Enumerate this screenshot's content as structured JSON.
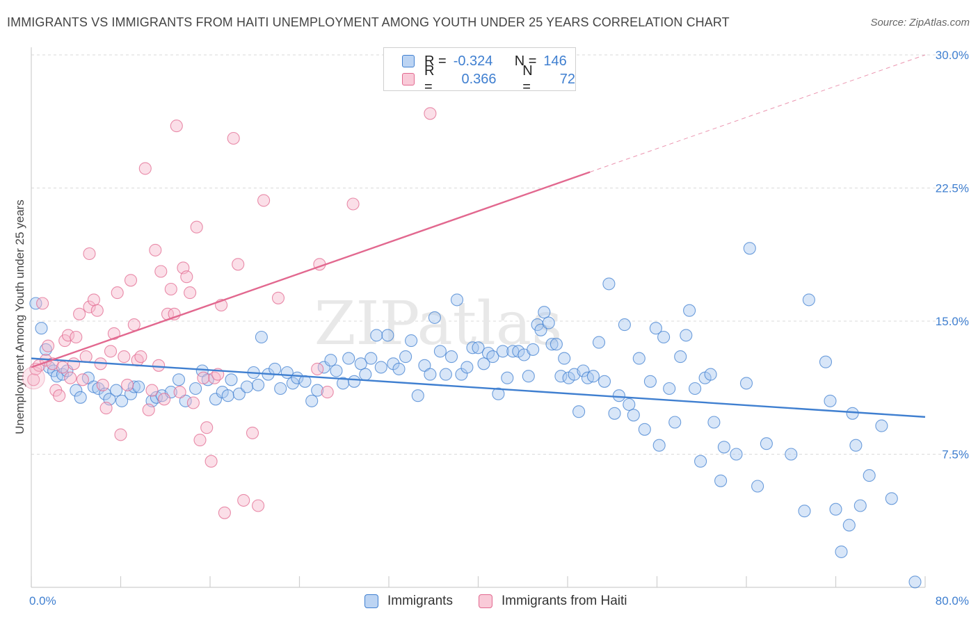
{
  "title": "IMMIGRANTS VS IMMIGRANTS FROM HAITI UNEMPLOYMENT AMONG YOUTH UNDER 25 YEARS CORRELATION CHART",
  "source": "Source: ZipAtlas.com",
  "watermark": "ZIPatlas",
  "colors": {
    "blue": "#3f7fd0",
    "blue_fill": "#a9c8f0",
    "pink": "#e2688f",
    "pink_fill": "#f6b9cc",
    "grid": "#d9d9d9"
  },
  "legend": {
    "rows": [
      {
        "r_label": "R =",
        "r_value": "-0.324",
        "n_label": "N =",
        "n_value": "146"
      },
      {
        "r_label": "R =",
        "r_value": "0.366",
        "n_label": "N =",
        "n_value": "72"
      }
    ]
  },
  "bottom_legend": [
    "Immigrants",
    "Immigrants from Haiti"
  ],
  "chart_data": {
    "type": "scatter",
    "title": "IMMIGRANTS VS IMMIGRANTS FROM HAITI UNEMPLOYMENT AMONG YOUTH UNDER 25 YEARS CORRELATION CHART",
    "xlabel": "",
    "ylabel": "Unemployment Among Youth under 25 years",
    "xlim": [
      0,
      80
    ],
    "ylim": [
      0,
      30
    ],
    "x_tick_labels": [
      "0.0%",
      "80.0%"
    ],
    "y_ticks": [
      7.5,
      15.0,
      22.5,
      30.0
    ],
    "y_tick_labels": [
      "7.5%",
      "15.0%",
      "22.5%",
      "30.0%"
    ],
    "grid": true,
    "series": [
      {
        "name": "Immigrants",
        "color": "#3f7fd0",
        "trend": {
          "x": [
            0,
            80
          ],
          "y": [
            12.9,
            9.6
          ],
          "dashed_from": null
        },
        "points": [
          [
            0.4,
            16.0
          ],
          [
            0.9,
            14.6
          ],
          [
            1.3,
            13.4
          ],
          [
            1.6,
            12.4
          ],
          [
            2.0,
            12.2
          ],
          [
            2.3,
            11.9
          ],
          [
            2.8,
            12.0
          ],
          [
            3.2,
            12.2
          ],
          [
            4.0,
            11.1
          ],
          [
            4.4,
            10.7
          ],
          [
            5.1,
            11.8
          ],
          [
            5.6,
            11.3
          ],
          [
            6.0,
            11.2
          ],
          [
            6.6,
            10.9
          ],
          [
            7.0,
            10.6
          ],
          [
            7.6,
            11.1
          ],
          [
            8.1,
            10.5
          ],
          [
            8.9,
            10.9
          ],
          [
            9.2,
            11.3
          ],
          [
            9.6,
            11.3
          ],
          [
            10.8,
            10.5
          ],
          [
            11.2,
            10.7
          ],
          [
            11.7,
            10.8
          ],
          [
            12.5,
            11.0
          ],
          [
            13.2,
            11.7
          ],
          [
            13.8,
            10.5
          ],
          [
            14.7,
            11.2
          ],
          [
            15.3,
            12.2
          ],
          [
            15.8,
            11.7
          ],
          [
            16.5,
            10.6
          ],
          [
            17.1,
            11.0
          ],
          [
            17.6,
            10.8
          ],
          [
            17.9,
            11.7
          ],
          [
            18.6,
            10.9
          ],
          [
            19.3,
            11.3
          ],
          [
            19.9,
            12.1
          ],
          [
            20.3,
            11.4
          ],
          [
            20.6,
            14.1
          ],
          [
            21.2,
            12.0
          ],
          [
            21.8,
            12.3
          ],
          [
            22.3,
            11.2
          ],
          [
            22.9,
            12.1
          ],
          [
            23.4,
            11.5
          ],
          [
            23.8,
            11.8
          ],
          [
            24.5,
            11.6
          ],
          [
            25.1,
            10.5
          ],
          [
            25.6,
            11.1
          ],
          [
            26.2,
            12.4
          ],
          [
            26.8,
            12.8
          ],
          [
            27.3,
            12.2
          ],
          [
            27.9,
            11.5
          ],
          [
            28.4,
            12.9
          ],
          [
            28.9,
            11.6
          ],
          [
            29.5,
            12.6
          ],
          [
            29.9,
            12.0
          ],
          [
            30.4,
            12.9
          ],
          [
            30.9,
            14.2
          ],
          [
            31.3,
            12.4
          ],
          [
            31.9,
            14.2
          ],
          [
            32.4,
            12.6
          ],
          [
            32.9,
            12.3
          ],
          [
            33.5,
            13.0
          ],
          [
            34.0,
            13.9
          ],
          [
            34.6,
            10.8
          ],
          [
            35.2,
            12.5
          ],
          [
            35.7,
            12.0
          ],
          [
            36.1,
            15.2
          ],
          [
            36.6,
            13.3
          ],
          [
            37.1,
            12.0
          ],
          [
            37.6,
            13.0
          ],
          [
            38.1,
            16.2
          ],
          [
            38.5,
            12.0
          ],
          [
            39.0,
            12.4
          ],
          [
            39.5,
            13.5
          ],
          [
            40.0,
            13.5
          ],
          [
            40.5,
            12.6
          ],
          [
            40.9,
            13.2
          ],
          [
            41.3,
            13.0
          ],
          [
            41.8,
            10.9
          ],
          [
            42.2,
            13.3
          ],
          [
            42.6,
            11.8
          ],
          [
            43.1,
            13.3
          ],
          [
            43.6,
            13.3
          ],
          [
            44.1,
            13.1
          ],
          [
            44.5,
            11.9
          ],
          [
            44.9,
            13.4
          ],
          [
            45.3,
            14.8
          ],
          [
            45.6,
            14.5
          ],
          [
            45.9,
            15.5
          ],
          [
            46.3,
            14.9
          ],
          [
            46.6,
            13.7
          ],
          [
            47.0,
            13.7
          ],
          [
            47.4,
            11.9
          ],
          [
            47.7,
            12.9
          ],
          [
            48.1,
            11.8
          ],
          [
            48.6,
            12.0
          ],
          [
            49.0,
            9.9
          ],
          [
            49.4,
            12.2
          ],
          [
            49.8,
            11.8
          ],
          [
            50.3,
            11.9
          ],
          [
            50.8,
            13.8
          ],
          [
            51.3,
            11.6
          ],
          [
            51.7,
            17.1
          ],
          [
            52.2,
            9.8
          ],
          [
            52.6,
            10.8
          ],
          [
            53.1,
            14.8
          ],
          [
            53.5,
            10.3
          ],
          [
            53.9,
            9.7
          ],
          [
            54.4,
            12.9
          ],
          [
            54.9,
            8.9
          ],
          [
            55.4,
            11.6
          ],
          [
            55.9,
            14.6
          ],
          [
            56.2,
            8.0
          ],
          [
            56.6,
            14.1
          ],
          [
            57.1,
            11.2
          ],
          [
            57.6,
            9.3
          ],
          [
            58.1,
            13.0
          ],
          [
            58.6,
            14.2
          ],
          [
            58.9,
            15.6
          ],
          [
            59.4,
            11.2
          ],
          [
            59.9,
            7.1
          ],
          [
            60.3,
            11.8
          ],
          [
            60.8,
            12.0
          ],
          [
            61.1,
            9.3
          ],
          [
            61.7,
            6.0
          ],
          [
            62.0,
            7.9
          ],
          [
            63.1,
            7.5
          ],
          [
            64.3,
            19.1
          ],
          [
            64.0,
            11.5
          ],
          [
            65.0,
            5.7
          ],
          [
            65.8,
            8.1
          ],
          [
            68.0,
            7.5
          ],
          [
            69.2,
            4.3
          ],
          [
            69.6,
            16.2
          ],
          [
            71.1,
            12.7
          ],
          [
            71.5,
            10.5
          ],
          [
            72.0,
            4.4
          ],
          [
            72.5,
            2.0
          ],
          [
            73.2,
            3.5
          ],
          [
            73.5,
            9.8
          ],
          [
            73.8,
            8.0
          ],
          [
            74.2,
            4.6
          ],
          [
            75.0,
            6.3
          ],
          [
            76.1,
            9.1
          ],
          [
            77.0,
            5.0
          ],
          [
            79.1,
            0.3
          ]
        ]
      },
      {
        "name": "Immigrants from Haiti",
        "color": "#e2688f",
        "trend": {
          "x": [
            0,
            80
          ],
          "y": [
            12.4,
            30.0
          ],
          "dashed_from": 50.0
        },
        "points": [
          [
            0.2,
            11.7
          ],
          [
            0.4,
            12.3
          ],
          [
            0.7,
            12.5
          ],
          [
            1.0,
            16.0
          ],
          [
            1.3,
            12.8
          ],
          [
            1.5,
            13.6
          ],
          [
            1.9,
            12.6
          ],
          [
            2.2,
            11.1
          ],
          [
            2.5,
            10.8
          ],
          [
            2.8,
            12.4
          ],
          [
            3.0,
            13.9
          ],
          [
            3.3,
            14.2
          ],
          [
            3.5,
            11.8
          ],
          [
            3.8,
            12.6
          ],
          [
            4.0,
            14.1
          ],
          [
            4.3,
            15.4
          ],
          [
            4.6,
            11.7
          ],
          [
            4.9,
            13.0
          ],
          [
            5.2,
            15.8
          ],
          [
            5.6,
            16.2
          ],
          [
            5.2,
            18.8
          ],
          [
            5.9,
            15.6
          ],
          [
            6.2,
            12.6
          ],
          [
            6.4,
            11.4
          ],
          [
            6.7,
            10.1
          ],
          [
            7.1,
            13.3
          ],
          [
            7.4,
            14.3
          ],
          [
            7.7,
            16.6
          ],
          [
            8.0,
            8.6
          ],
          [
            8.3,
            13.0
          ],
          [
            8.6,
            11.4
          ],
          [
            8.9,
            17.3
          ],
          [
            9.2,
            14.8
          ],
          [
            9.5,
            12.8
          ],
          [
            9.8,
            13.0
          ],
          [
            10.2,
            23.6
          ],
          [
            10.5,
            10.0
          ],
          [
            10.8,
            11.1
          ],
          [
            11.1,
            19.0
          ],
          [
            11.4,
            12.5
          ],
          [
            11.6,
            17.8
          ],
          [
            11.9,
            10.6
          ],
          [
            12.2,
            15.4
          ],
          [
            12.5,
            16.8
          ],
          [
            12.8,
            15.4
          ],
          [
            13.0,
            26.0
          ],
          [
            13.3,
            11.0
          ],
          [
            13.6,
            18.0
          ],
          [
            13.9,
            17.5
          ],
          [
            14.2,
            16.6
          ],
          [
            14.5,
            10.4
          ],
          [
            14.8,
            20.3
          ],
          [
            15.1,
            8.3
          ],
          [
            15.4,
            11.8
          ],
          [
            15.7,
            9.0
          ],
          [
            16.1,
            7.1
          ],
          [
            16.4,
            11.8
          ],
          [
            16.7,
            12.0
          ],
          [
            17.0,
            15.9
          ],
          [
            17.3,
            4.2
          ],
          [
            18.1,
            25.3
          ],
          [
            18.5,
            18.2
          ],
          [
            19.0,
            4.9
          ],
          [
            19.8,
            8.7
          ],
          [
            20.3,
            4.6
          ],
          [
            20.8,
            21.8
          ],
          [
            22.1,
            16.3
          ],
          [
            25.6,
            12.3
          ],
          [
            25.8,
            18.2
          ],
          [
            26.5,
            11.0
          ],
          [
            28.8,
            21.6
          ],
          [
            35.7,
            26.7
          ]
        ]
      }
    ]
  }
}
